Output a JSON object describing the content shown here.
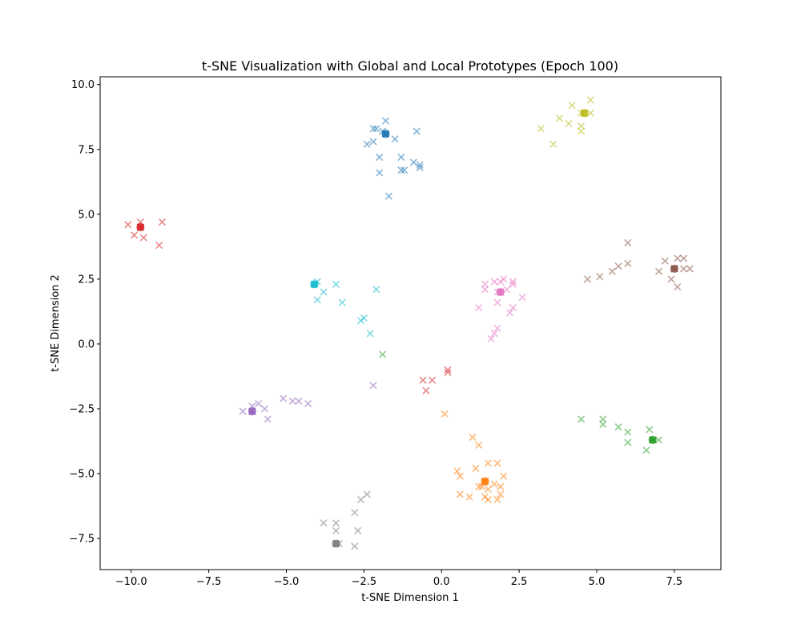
{
  "chart_data": {
    "type": "scatter",
    "title": "t-SNE Visualization with Global and Local Prototypes (Epoch 100)",
    "xlabel": "t-SNE Dimension 1",
    "ylabel": "t-SNE Dimension 2",
    "xlim": [
      -11.0,
      9.0
    ],
    "ylim": [
      -8.7,
      10.3
    ],
    "xticks": [
      -10.0,
      -7.5,
      -5.0,
      -2.5,
      0.0,
      2.5,
      5.0,
      7.5
    ],
    "xtick_labels": [
      "−10.0",
      "−7.5",
      "−5.0",
      "−2.5",
      "0.0",
      "2.5",
      "5.0",
      "7.5"
    ],
    "yticks": [
      -7.5,
      -5.0,
      -2.5,
      0.0,
      2.5,
      5.0,
      7.5,
      10.0
    ],
    "ytick_labels": [
      "−7.5",
      "−5.0",
      "−2.5",
      "0.0",
      "2.5",
      "5.0",
      "7.5",
      "10.0"
    ],
    "grid": false,
    "series": [
      {
        "color": "#1f77b4",
        "prototype": [
          -1.8,
          8.1
        ],
        "points": [
          [
            -2.2,
            8.3
          ],
          [
            -2.1,
            8.3
          ],
          [
            -1.8,
            8.6
          ],
          [
            -1.9,
            8.2
          ],
          [
            -2.4,
            7.7
          ],
          [
            -2.2,
            7.8
          ],
          [
            -1.5,
            7.9
          ],
          [
            -0.8,
            8.2
          ],
          [
            -2.0,
            7.2
          ],
          [
            -1.3,
            7.2
          ],
          [
            -0.9,
            7.0
          ],
          [
            -0.7,
            6.9
          ],
          [
            -0.7,
            6.8
          ],
          [
            -1.2,
            6.7
          ],
          [
            -1.3,
            6.7
          ],
          [
            -2.0,
            6.6
          ],
          [
            -1.7,
            5.7
          ]
        ]
      },
      {
        "color": "#ff7f0e",
        "prototype": [
          1.4,
          -5.3
        ],
        "points": [
          [
            1.0,
            -3.6
          ],
          [
            1.2,
            -3.9
          ],
          [
            0.5,
            -4.9
          ],
          [
            0.6,
            -5.1
          ],
          [
            1.1,
            -4.8
          ],
          [
            1.5,
            -4.6
          ],
          [
            1.8,
            -4.6
          ],
          [
            2.0,
            -5.1
          ],
          [
            1.7,
            -5.4
          ],
          [
            1.9,
            -5.5
          ],
          [
            1.2,
            -5.5
          ],
          [
            1.3,
            -5.5
          ],
          [
            1.5,
            -5.6
          ],
          [
            0.6,
            -5.8
          ],
          [
            0.9,
            -5.9
          ],
          [
            1.4,
            -5.9
          ],
          [
            1.5,
            -6.0
          ],
          [
            1.9,
            -5.8
          ],
          [
            1.8,
            -6.0
          ],
          [
            0.1,
            -2.7
          ]
        ]
      },
      {
        "color": "#2ca02c",
        "prototype": [
          6.8,
          -3.7
        ],
        "points": [
          [
            4.5,
            -2.9
          ],
          [
            5.2,
            -2.9
          ],
          [
            5.2,
            -3.1
          ],
          [
            5.7,
            -3.2
          ],
          [
            6.0,
            -3.4
          ],
          [
            6.7,
            -3.3
          ],
          [
            7.0,
            -3.7
          ],
          [
            6.0,
            -3.8
          ],
          [
            6.6,
            -4.1
          ],
          [
            -1.9,
            -0.4
          ]
        ]
      },
      {
        "color": "#d62728",
        "prototype": [
          -9.7,
          4.5
        ],
        "points": [
          [
            -10.1,
            4.6
          ],
          [
            -9.7,
            4.7
          ],
          [
            -9.7,
            4.5
          ],
          [
            -9.0,
            4.7
          ],
          [
            -9.9,
            4.2
          ],
          [
            -9.6,
            4.1
          ],
          [
            -9.1,
            3.8
          ],
          [
            0.2,
            -1.0
          ],
          [
            0.2,
            -1.1
          ],
          [
            -0.3,
            -1.4
          ],
          [
            -0.5,
            -1.8
          ],
          [
            -0.6,
            -1.4
          ]
        ]
      },
      {
        "color": "#9467bd",
        "prototype": [
          -6.1,
          -2.6
        ],
        "points": [
          [
            -6.4,
            -2.6
          ],
          [
            -6.1,
            -2.4
          ],
          [
            -5.9,
            -2.3
          ],
          [
            -5.7,
            -2.5
          ],
          [
            -5.6,
            -2.9
          ],
          [
            -5.1,
            -2.1
          ],
          [
            -4.8,
            -2.2
          ],
          [
            -4.6,
            -2.2
          ],
          [
            -4.3,
            -2.3
          ],
          [
            -2.2,
            -1.6
          ]
        ]
      },
      {
        "color": "#8c564b",
        "prototype": [
          7.5,
          2.9
        ],
        "points": [
          [
            6.0,
            3.9
          ],
          [
            5.5,
            2.8
          ],
          [
            5.7,
            3.0
          ],
          [
            6.0,
            3.1
          ],
          [
            4.7,
            2.5
          ],
          [
            5.1,
            2.6
          ],
          [
            7.2,
            3.2
          ],
          [
            7.6,
            3.3
          ],
          [
            7.8,
            3.3
          ],
          [
            7.0,
            2.8
          ],
          [
            7.8,
            2.9
          ],
          [
            8.0,
            2.9
          ],
          [
            7.4,
            2.5
          ],
          [
            7.6,
            2.2
          ]
        ]
      },
      {
        "color": "#e377c2",
        "prototype": [
          1.9,
          2.0
        ],
        "points": [
          [
            1.4,
            2.3
          ],
          [
            1.7,
            2.4
          ],
          [
            1.9,
            2.4
          ],
          [
            2.0,
            2.5
          ],
          [
            2.3,
            2.4
          ],
          [
            2.3,
            2.3
          ],
          [
            1.4,
            2.1
          ],
          [
            1.8,
            2.0
          ],
          [
            2.1,
            2.1
          ],
          [
            2.6,
            1.8
          ],
          [
            1.2,
            1.4
          ],
          [
            1.8,
            1.6
          ],
          [
            2.3,
            1.4
          ],
          [
            2.2,
            1.2
          ],
          [
            1.8,
            0.6
          ],
          [
            1.7,
            0.4
          ],
          [
            1.6,
            0.2
          ]
        ]
      },
      {
        "color": "#7f7f7f",
        "prototype": [
          -3.4,
          -7.7
        ],
        "points": [
          [
            -2.4,
            -5.8
          ],
          [
            -2.6,
            -6.0
          ],
          [
            -2.8,
            -6.5
          ],
          [
            -3.8,
            -6.9
          ],
          [
            -3.4,
            -6.9
          ],
          [
            -3.4,
            -7.2
          ],
          [
            -2.7,
            -7.2
          ],
          [
            -3.3,
            -7.7
          ],
          [
            -2.8,
            -7.8
          ]
        ]
      },
      {
        "color": "#bcbd22",
        "prototype": [
          4.6,
          8.9
        ],
        "points": [
          [
            4.8,
            9.4
          ],
          [
            4.2,
            9.2
          ],
          [
            4.5,
            8.9
          ],
          [
            4.8,
            8.9
          ],
          [
            3.8,
            8.7
          ],
          [
            4.1,
            8.5
          ],
          [
            4.5,
            8.4
          ],
          [
            3.2,
            8.3
          ],
          [
            4.5,
            8.2
          ],
          [
            3.6,
            7.7
          ]
        ]
      },
      {
        "color": "#17becf",
        "prototype": [
          -4.1,
          2.3
        ],
        "points": [
          [
            -4.0,
            2.4
          ],
          [
            -3.4,
            2.3
          ],
          [
            -2.1,
            2.1
          ],
          [
            -3.8,
            2.0
          ],
          [
            -4.0,
            1.7
          ],
          [
            -3.2,
            1.6
          ],
          [
            -2.5,
            1.0
          ],
          [
            -2.6,
            0.9
          ],
          [
            -2.3,
            0.4
          ]
        ]
      }
    ]
  }
}
